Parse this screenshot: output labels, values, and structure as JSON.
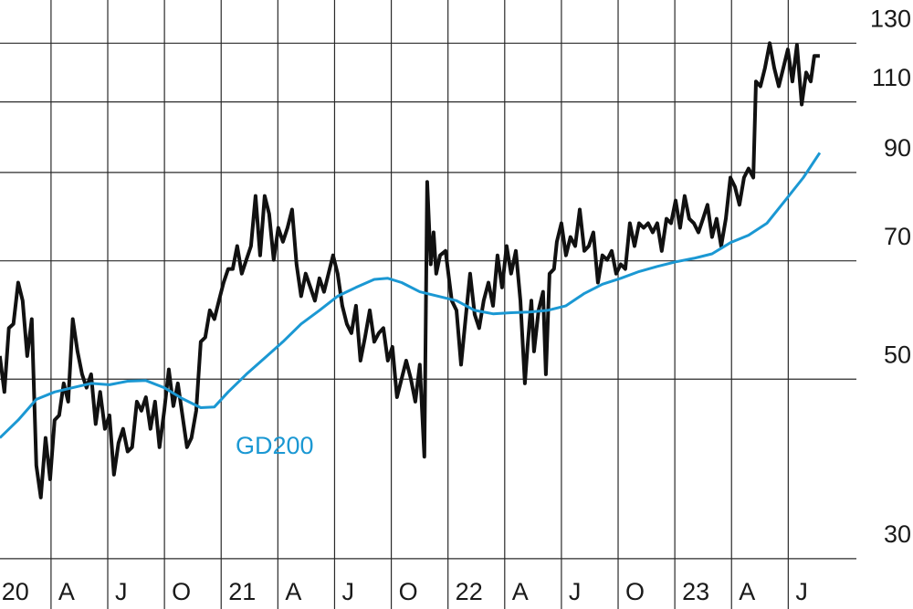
{
  "chart_data": {
    "type": "line",
    "log_y": true,
    "grid": true,
    "xlim": [
      0.3,
      48.6
    ],
    "ylim": [
      26,
      147
    ],
    "xticks": [
      {
        "value": 0,
        "label": "20"
      },
      {
        "value": 3,
        "label": "A"
      },
      {
        "value": 6,
        "label": "J"
      },
      {
        "value": 9,
        "label": "O"
      },
      {
        "value": 12,
        "label": "21"
      },
      {
        "value": 15,
        "label": "A"
      },
      {
        "value": 18,
        "label": "J"
      },
      {
        "value": 21,
        "label": "O"
      },
      {
        "value": 24,
        "label": "22"
      },
      {
        "value": 27,
        "label": "A"
      },
      {
        "value": 30,
        "label": "J"
      },
      {
        "value": 33,
        "label": "O"
      },
      {
        "value": 36,
        "label": "23"
      },
      {
        "value": 39,
        "label": "A"
      },
      {
        "value": 42,
        "label": "J"
      }
    ],
    "yticks": [
      30,
      50,
      70,
      90,
      110,
      130
    ],
    "series": [
      {
        "color": "#111111",
        "x": [
          0.29,
          0.53,
          0.77,
          1.01,
          1.26,
          1.5,
          1.74,
          1.98,
          2.22,
          2.46,
          2.71,
          2.95,
          3.19,
          3.43,
          3.67,
          3.91,
          4.15,
          4.4,
          4.64,
          4.88,
          5.12,
          5.36,
          5.6,
          5.85,
          6.09,
          6.33,
          6.57,
          6.81,
          7.05,
          7.29,
          7.54,
          7.78,
          8.02,
          8.26,
          8.5,
          8.74,
          8.99,
          9.23,
          9.47,
          9.71,
          9.95,
          10.19,
          10.43,
          10.68,
          10.92,
          11.16,
          11.4,
          11.64,
          11.88,
          12.13,
          12.37,
          12.61,
          12.85,
          13.09,
          13.33,
          13.58,
          13.82,
          14.06,
          14.3,
          14.54,
          14.78,
          15.02,
          15.27,
          15.51,
          15.75,
          15.99,
          16.23,
          16.47,
          16.72,
          16.96,
          17.2,
          17.44,
          17.68,
          17.92,
          18.16,
          18.41,
          18.65,
          18.89,
          19.13,
          19.37,
          19.61,
          19.86,
          20.1,
          20.34,
          20.58,
          20.82,
          21.06,
          21.3,
          21.55,
          21.79,
          22.03,
          22.27,
          22.51,
          22.75,
          22.9,
          23.09,
          23.24,
          23.38,
          23.58,
          23.87,
          24.2,
          24.45,
          24.69,
          24.93,
          25.17,
          25.41,
          25.65,
          25.89,
          26.14,
          26.38,
          26.62,
          26.86,
          27.1,
          27.34,
          27.59,
          27.83,
          28.07,
          28.21,
          28.41,
          28.55,
          28.79,
          29.03,
          29.18,
          29.37,
          29.61,
          29.76,
          30.0,
          30.24,
          30.48,
          30.73,
          30.97,
          31.21,
          31.45,
          31.69,
          31.93,
          32.17,
          32.42,
          32.66,
          32.9,
          33.14,
          33.38,
          33.62,
          33.87,
          34.11,
          34.35,
          34.59,
          34.83,
          35.07,
          35.31,
          35.56,
          35.8,
          36.04,
          36.28,
          36.52,
          36.76,
          37.01,
          37.25,
          37.49,
          37.73,
          37.97,
          38.21,
          38.45,
          38.7,
          38.94,
          39.18,
          39.42,
          39.66,
          39.9,
          40.15,
          40.29,
          40.53,
          40.77,
          41.02,
          41.26,
          41.5,
          41.74,
          41.98,
          42.22,
          42.46,
          42.71,
          42.95,
          43.19,
          43.38,
          43.67
        ],
        "values": [
          53.4,
          48.2,
          57.8,
          58.5,
          65.8,
          62.5,
          53.4,
          59.3,
          39.1,
          35.7,
          42.3,
          37.6,
          44.5,
          45.1,
          49.4,
          46.9,
          59.3,
          54.1,
          50.7,
          48.8,
          50.7,
          44.0,
          48.2,
          43.4,
          45.1,
          38.1,
          41.7,
          43.4,
          40.7,
          41.2,
          46.9,
          45.7,
          47.5,
          43.4,
          46.9,
          41.2,
          45.7,
          51.4,
          46.3,
          49.4,
          45.1,
          41.2,
          42.3,
          45.7,
          55.6,
          56.3,
          60.8,
          59.3,
          62.5,
          65.8,
          68.4,
          68.4,
          73.0,
          67.5,
          70.2,
          73.0,
          84.2,
          71.1,
          84.2,
          80.0,
          70.2,
          76.9,
          73.9,
          76.9,
          81.0,
          69.3,
          63.3,
          67.5,
          64.9,
          62.5,
          66.6,
          64.1,
          67.5,
          71.1,
          67.5,
          61.6,
          58.5,
          57.0,
          61.6,
          52.7,
          56.3,
          60.8,
          55.6,
          57.0,
          57.8,
          52.7,
          54.8,
          47.5,
          50.1,
          52.7,
          50.1,
          46.9,
          52.1,
          40.1,
          87.6,
          69.3,
          75.9,
          67.5,
          71.1,
          72.0,
          62.5,
          60.8,
          52.1,
          59.3,
          67.5,
          60.1,
          57.8,
          62.5,
          65.8,
          61.6,
          71.1,
          64.9,
          73.0,
          67.5,
          72.0,
          62.5,
          49.4,
          54.8,
          62.5,
          54.1,
          60.8,
          64.1,
          50.7,
          67.5,
          68.4,
          73.9,
          77.9,
          71.1,
          74.9,
          73.0,
          81.0,
          72.0,
          73.0,
          75.9,
          65.8,
          71.1,
          70.2,
          72.0,
          67.5,
          69.3,
          68.4,
          77.9,
          73.0,
          77.9,
          76.9,
          77.9,
          75.9,
          77.9,
          72.0,
          78.9,
          77.9,
          83.1,
          76.9,
          84.2,
          78.9,
          77.9,
          75.9,
          78.9,
          82.1,
          74.9,
          78.9,
          73.0,
          78.9,
          88.7,
          86.4,
          82.1,
          88.7,
          91.0,
          88.7,
          116.6,
          115.0,
          121.2,
          130,
          121.2,
          115.0,
          121.2,
          127.7,
          116.6,
          129.4,
          109.2,
          119.6,
          116.6,
          125.4,
          125.4
        ]
      },
      {
        "name": "GD200",
        "color": "#1b98d3",
        "x": [
          0.29,
          1.26,
          2.22,
          3.19,
          4.15,
          5.12,
          6.09,
          7.05,
          8.02,
          8.99,
          9.95,
          10.92,
          11.64,
          12.37,
          13.33,
          14.3,
          15.27,
          16.23,
          17.2,
          18.16,
          19.13,
          20.1,
          20.82,
          21.55,
          22.51,
          23.48,
          24.45,
          25.41,
          26.38,
          27.34,
          28.31,
          29.27,
          30.24,
          31.21,
          32.17,
          33.14,
          34.11,
          35.07,
          36.04,
          37.01,
          37.97,
          38.94,
          39.9,
          40.87,
          41.84,
          42.8,
          43.67
        ],
        "values": [
          42.3,
          44.5,
          47.2,
          48.2,
          48.8,
          49.4,
          49.2,
          49.7,
          49.8,
          48.8,
          47.3,
          46.1,
          46.2,
          48.2,
          50.7,
          53.1,
          55.6,
          58.5,
          60.8,
          63.3,
          64.9,
          66.4,
          66.6,
          65.8,
          64.1,
          63.3,
          62.5,
          60.8,
          60.2,
          60.4,
          60.5,
          60.8,
          61.6,
          63.8,
          65.5,
          66.6,
          67.9,
          68.9,
          69.8,
          70.5,
          71.4,
          73.7,
          75.3,
          77.9,
          83.1,
          88.7,
          95.2
        ]
      }
    ]
  }
}
